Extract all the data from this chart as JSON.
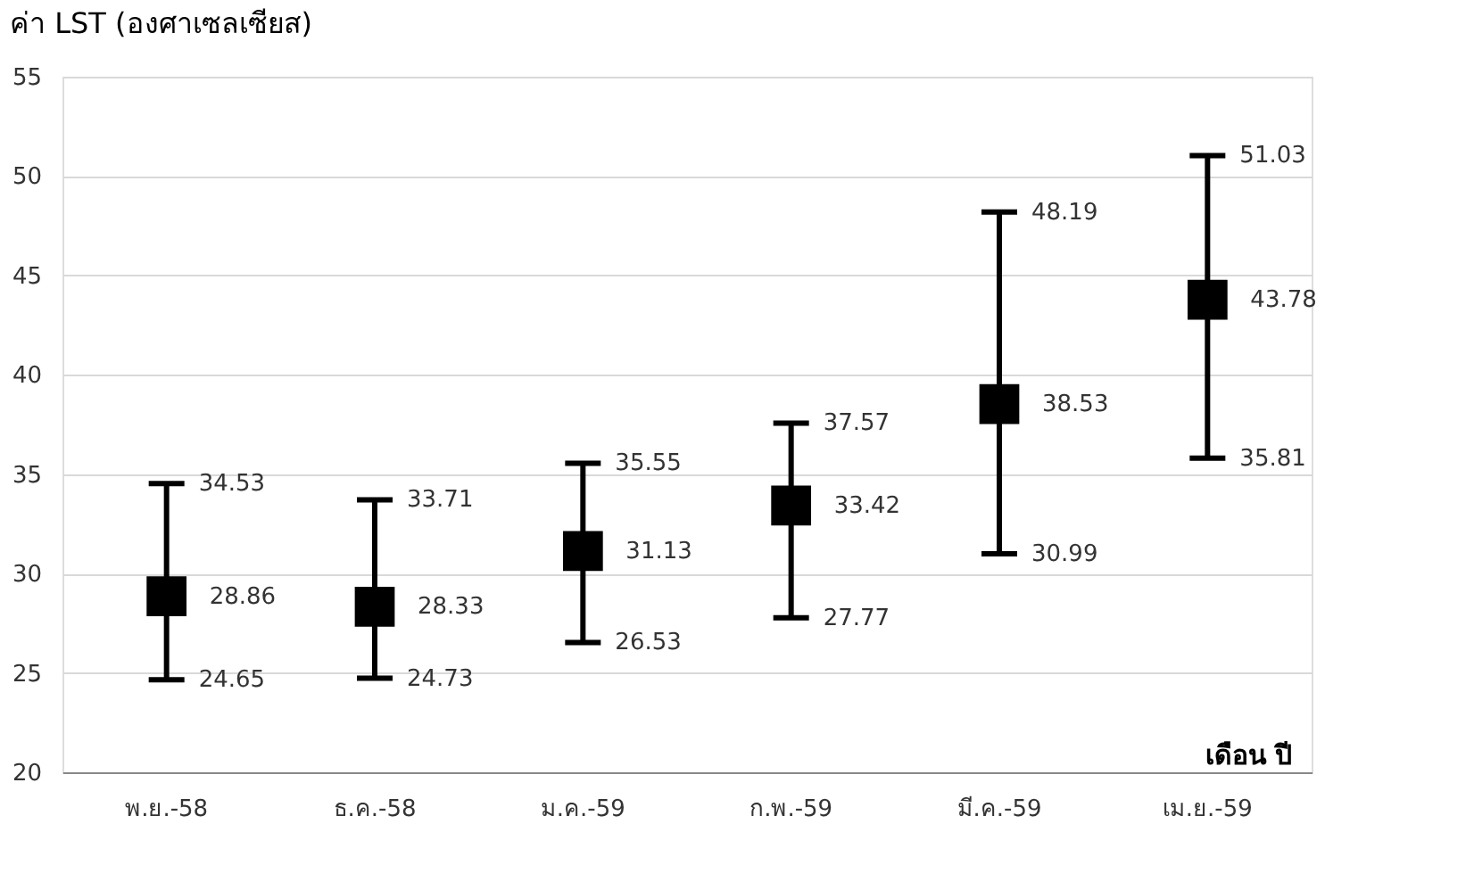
{
  "chart_data": {
    "type": "scatter",
    "ylabel": "ค่า LST (องศาเซลเซียส)",
    "xlabel": "เดือน ปี",
    "categories": [
      "พ.ย.-58",
      "ธ.ค.-58",
      "ม.ค.-59",
      "ก.พ.-59",
      "มี.ค.-59",
      "เม.ย.-59"
    ],
    "series": [
      {
        "color": "#000000",
        "values": [
          28.86,
          28.33,
          31.13,
          33.42,
          38.53,
          43.78
        ],
        "errors": [
          [
            24.65,
            34.53
          ],
          [
            24.73,
            33.71
          ],
          [
            26.53,
            35.55
          ],
          [
            27.77,
            37.57
          ],
          [
            30.99,
            48.19
          ],
          [
            35.81,
            51.03
          ]
        ]
      }
    ],
    "annotations": [
      {
        "text": "34.53",
        "x": "พ.ย.-58",
        "y": 34.53
      },
      {
        "text": "24.65",
        "x": "พ.ย.-58",
        "y": 24.65
      },
      {
        "text": "33.71",
        "x": "ธ.ค.-58",
        "y": 33.71
      },
      {
        "text": "24.73",
        "x": "ธ.ค.-58",
        "y": 24.73
      },
      {
        "text": "35.55",
        "x": "ม.ค.-59",
        "y": 35.55
      },
      {
        "text": "26.53",
        "x": "ม.ค.-59",
        "y": 26.53
      },
      {
        "text": "37.57",
        "x": "ก.พ.-59",
        "y": 37.57
      },
      {
        "text": "27.77",
        "x": "ก.พ.-59",
        "y": 27.77
      },
      {
        "text": "48.19",
        "x": "มี.ค.-59",
        "y": 48.19
      },
      {
        "text": "30.99",
        "x": "มี.ค.-59",
        "y": 30.99
      },
      {
        "text": "51.03",
        "x": "เม.ย.-59",
        "y": 51.03
      },
      {
        "text": "35.81",
        "x": "เม.ย.-59",
        "y": 35.81
      }
    ],
    "ylim": [
      20,
      55
    ],
    "yticks": [
      20,
      25,
      30,
      35,
      40,
      45,
      50,
      55
    ],
    "grid": "y",
    "legend": false,
    "marker": "square",
    "data_labels": true
  }
}
